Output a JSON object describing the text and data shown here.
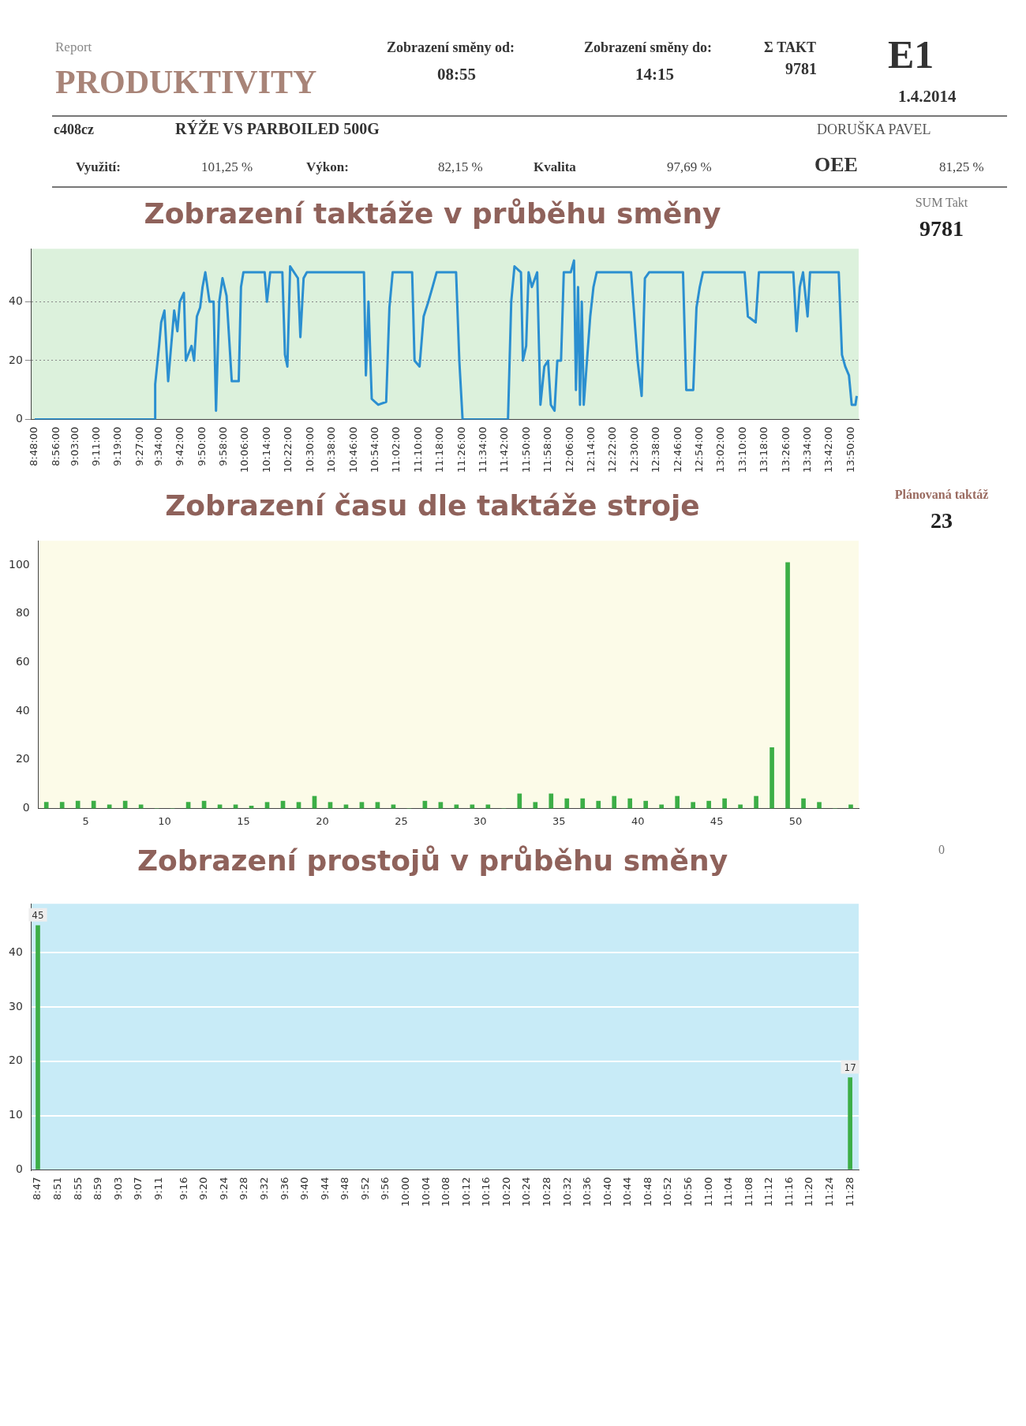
{
  "chart_data": [
    {
      "type": "line",
      "title": "Zobrazení taktáže v průběhu směny",
      "annotations": [
        "Report",
        "PRODUKTIVITY",
        "Zobrazení směny od:",
        "08:55",
        "Zobrazení směny do:",
        "14:15",
        "Σ TAKT",
        "9781",
        "E1",
        "1.4.2014",
        "c408cz",
        "RÝŽE VS PARBOILED 500G",
        "DORUŠKA PAVEL",
        "Využití:",
        "101,25 %",
        "Výkon:",
        "82,15 %",
        "Kvalita",
        "97,69 %",
        "OEE",
        "81,25 %",
        "SUM Takt",
        "9781"
      ],
      "x": [
        8.8,
        9.54,
        9.543,
        9.567,
        9.58,
        9.6,
        9.623,
        9.66,
        9.68,
        9.695,
        9.72,
        9.732,
        9.767,
        9.783,
        9.8,
        9.82,
        9.835,
        9.852,
        9.878,
        9.903,
        9.918,
        9.938,
        9.958,
        9.983,
        10.015,
        10.058,
        10.072,
        10.087,
        10.218,
        10.232,
        10.252,
        10.327,
        10.343,
        10.358,
        10.375,
        10.423,
        10.438,
        10.458,
        10.478,
        10.83,
        10.842,
        10.858,
        10.878,
        10.918,
        10.967,
        10.987,
        11.007,
        11.127,
        11.142,
        11.173,
        11.198,
        11.227,
        11.253,
        11.278,
        11.398,
        11.418,
        11.438,
        11.718,
        11.738,
        11.758,
        11.798,
        11.81,
        11.83,
        11.845,
        11.865,
        11.898,
        11.918,
        11.942,
        11.965,
        11.982,
        12.005,
        12.022,
        12.045,
        12.062,
        12.105,
        12.125,
        12.137,
        12.15,
        12.162,
        12.173,
        12.185,
        12.205,
        12.225,
        12.245,
        12.265,
        12.477,
        12.497,
        12.517,
        12.542,
        12.562,
        12.588,
        12.797,
        12.817,
        12.86,
        12.88,
        12.9,
        12.92,
        13.177,
        13.197,
        13.245,
        13.265,
        13.477,
        13.497,
        13.517,
        13.537,
        13.565,
        13.58,
        13.757,
        13.777,
        13.797,
        13.82,
        13.837,
        13.86,
        13.868
      ],
      "values": [
        0,
        0,
        12,
        25,
        33,
        37,
        13,
        37,
        30,
        40,
        43,
        20,
        25,
        20,
        35,
        38,
        45,
        50,
        40,
        40,
        3,
        40,
        48,
        42,
        13,
        13,
        45,
        50,
        50,
        40,
        50,
        50,
        22,
        18,
        52,
        48,
        28,
        48,
        50,
        50,
        15,
        40,
        7,
        5,
        6,
        38,
        50,
        50,
        20,
        18,
        35,
        40,
        45,
        50,
        50,
        20,
        0,
        0,
        40,
        52,
        50,
        20,
        25,
        50,
        45,
        50,
        5,
        18,
        20,
        5,
        3,
        20,
        20,
        50,
        50,
        54,
        10,
        45,
        5,
        40,
        5,
        20,
        35,
        45,
        50,
        50,
        35,
        20,
        8,
        48,
        50,
        50,
        10,
        10,
        38,
        45,
        50,
        50,
        35,
        33,
        50,
        50,
        30,
        45,
        50,
        35,
        50,
        50,
        22,
        18,
        15,
        5,
        5,
        8
      ],
      "color": "#2b8fd0",
      "xlim": [
        8.78,
        13.88
      ],
      "ylim": [
        0,
        58
      ],
      "yticks": [
        0,
        20,
        40
      ],
      "grid": "y",
      "line_style": "solid",
      "marker": "none",
      "xticks": [
        {
          "value": 8.8,
          "label": "8:48:00"
        },
        {
          "value": 8.9333,
          "label": "8:56:00"
        },
        {
          "value": 9.05,
          "label": "9:03:00"
        },
        {
          "value": 9.1833,
          "label": "9:11:00"
        },
        {
          "value": 9.3167,
          "label": "9:19:00"
        },
        {
          "value": 9.45,
          "label": "9:27:00"
        },
        {
          "value": 9.5667,
          "label": "9:34:00"
        },
        {
          "value": 9.7,
          "label": "9:42:00"
        },
        {
          "value": 9.8333,
          "label": "9:50:00"
        },
        {
          "value": 9.9667,
          "label": "9:58:00"
        },
        {
          "value": 10.1,
          "label": "10:06:00"
        },
        {
          "value": 10.2333,
          "label": "10:14:00"
        },
        {
          "value": 10.3667,
          "label": "10:22:00"
        },
        {
          "value": 10.5,
          "label": "10:30:00"
        },
        {
          "value": 10.6333,
          "label": "10:38:00"
        },
        {
          "value": 10.7667,
          "label": "10:46:00"
        },
        {
          "value": 10.9,
          "label": "10:54:00"
        },
        {
          "value": 11.0333,
          "label": "11:02:00"
        },
        {
          "value": 11.1667,
          "label": "11:10:00"
        },
        {
          "value": 11.3,
          "label": "11:18:00"
        },
        {
          "value": 11.4333,
          "label": "11:26:00"
        },
        {
          "value": 11.5667,
          "label": "11:34:00"
        },
        {
          "value": 11.7,
          "label": "11:42:00"
        },
        {
          "value": 11.8333,
          "label": "11:50:00"
        },
        {
          "value": 11.9667,
          "label": "11:58:00"
        },
        {
          "value": 12.1,
          "label": "12:06:00"
        },
        {
          "value": 12.2333,
          "label": "12:14:00"
        },
        {
          "value": 12.3667,
          "label": "12:22:00"
        },
        {
          "value": 12.5,
          "label": "12:30:00"
        },
        {
          "value": 12.6333,
          "label": "12:38:00"
        },
        {
          "value": 12.7667,
          "label": "12:46:00"
        },
        {
          "value": 12.9,
          "label": "12:54:00"
        },
        {
          "value": 13.0333,
          "label": "13:02:00"
        },
        {
          "value": 13.1667,
          "label": "13:10:00"
        },
        {
          "value": 13.3,
          "label": "13:18:00"
        },
        {
          "value": 13.4333,
          "label": "13:26:00"
        },
        {
          "value": 13.5667,
          "label": "13:34:00"
        },
        {
          "value": 13.7,
          "label": "13:42:00"
        },
        {
          "value": 13.8333,
          "label": "13:50:00"
        }
      ]
    },
    {
      "type": "bar",
      "title": "Zobrazení času dle taktáže stroje",
      "annotations": [
        "Plánovaná taktáž",
        "23"
      ],
      "x": [
        2.5,
        3.5,
        4.5,
        5.5,
        6.5,
        7.5,
        8.5,
        9.5,
        10.5,
        11.5,
        12.5,
        13.5,
        14.5,
        15.5,
        16.5,
        17.5,
        18.5,
        19.5,
        20.5,
        21.5,
        22.5,
        23.5,
        24.5,
        25.5,
        26.5,
        27.5,
        28.5,
        29.5,
        30.5,
        31.5,
        32.5,
        33.5,
        34.5,
        35.5,
        36.5,
        37.5,
        38.5,
        39.5,
        40.5,
        41.5,
        42.5,
        43.5,
        44.5,
        45.5,
        46.5,
        47.5,
        48.5,
        49.5,
        50.5,
        51.5,
        52.5,
        53.5
      ],
      "values": [
        2.5,
        2.5,
        3,
        3,
        1.5,
        3,
        1.5,
        0,
        0,
        2.5,
        3,
        1.5,
        1.5,
        1,
        2.5,
        3,
        2.5,
        5,
        2.5,
        1.5,
        2.5,
        2.5,
        1.5,
        0,
        3,
        2.5,
        1.5,
        1.5,
        1.5,
        0,
        6,
        2.5,
        6,
        4,
        4,
        3,
        5,
        4,
        3,
        1.5,
        5,
        2.5,
        3,
        4,
        1.5,
        5,
        25,
        101,
        4,
        2.5,
        0,
        1.5
      ],
      "color": "#3cae46",
      "xlim": [
        2,
        54
      ],
      "xticks": [
        5,
        10,
        15,
        20,
        25,
        30,
        35,
        40,
        45,
        50
      ],
      "ylim": [
        0,
        110
      ],
      "yticks": [
        0,
        20,
        40,
        60,
        80,
        100
      ]
    },
    {
      "type": "bar",
      "title": "Zobrazení prostojů v průběhu směny",
      "annotations": [
        "0"
      ],
      "x": [
        8.7833,
        11.4667
      ],
      "values": [
        45,
        17
      ],
      "data_labels": true,
      "color": "#3cae46",
      "xlim": [
        8.762,
        11.495
      ],
      "ylim": [
        0,
        49
      ],
      "yticks": [
        0,
        10,
        20,
        30,
        40
      ],
      "grid": "y",
      "xticks": [
        {
          "value": 8.7833,
          "label": "8:47"
        },
        {
          "value": 8.85,
          "label": "8:51"
        },
        {
          "value": 8.9167,
          "label": "8:55"
        },
        {
          "value": 8.9833,
          "label": "8:59"
        },
        {
          "value": 9.05,
          "label": "9:03"
        },
        {
          "value": 9.1167,
          "label": "9:07"
        },
        {
          "value": 9.1833,
          "label": "9:11"
        },
        {
          "value": 9.2667,
          "label": "9:16"
        },
        {
          "value": 9.3333,
          "label": "9:20"
        },
        {
          "value": 9.4,
          "label": "9:24"
        },
        {
          "value": 9.4667,
          "label": "9:28"
        },
        {
          "value": 9.5333,
          "label": "9:32"
        },
        {
          "value": 9.6,
          "label": "9:36"
        },
        {
          "value": 9.6667,
          "label": "9:40"
        },
        {
          "value": 9.7333,
          "label": "9:44"
        },
        {
          "value": 9.8,
          "label": "9:48"
        },
        {
          "value": 9.8667,
          "label": "9:52"
        },
        {
          "value": 9.9333,
          "label": "9:56"
        },
        {
          "value": 10,
          "label": "10:00"
        },
        {
          "value": 10.0667,
          "label": "10:04"
        },
        {
          "value": 10.1333,
          "label": "10:08"
        },
        {
          "value": 10.2,
          "label": "10:12"
        },
        {
          "value": 10.2667,
          "label": "10:16"
        },
        {
          "value": 10.3333,
          "label": "10:20"
        },
        {
          "value": 10.4,
          "label": "10:24"
        },
        {
          "value": 10.4667,
          "label": "10:28"
        },
        {
          "value": 10.5333,
          "label": "10:32"
        },
        {
          "value": 10.6,
          "label": "10:36"
        },
        {
          "value": 10.6667,
          "label": "10:40"
        },
        {
          "value": 10.7333,
          "label": "10:44"
        },
        {
          "value": 10.8,
          "label": "10:48"
        },
        {
          "value": 10.8667,
          "label": "10:52"
        },
        {
          "value": 10.9333,
          "label": "10:56"
        },
        {
          "value": 11,
          "label": "11:00"
        },
        {
          "value": 11.0667,
          "label": "11:04"
        },
        {
          "value": 11.1333,
          "label": "11:08"
        },
        {
          "value": 11.2,
          "label": "11:12"
        },
        {
          "value": 11.2667,
          "label": "11:16"
        },
        {
          "value": 11.3333,
          "label": "11:20"
        },
        {
          "value": 11.4,
          "label": "11:24"
        },
        {
          "value": 11.4667,
          "label": "11:28"
        }
      ]
    }
  ]
}
